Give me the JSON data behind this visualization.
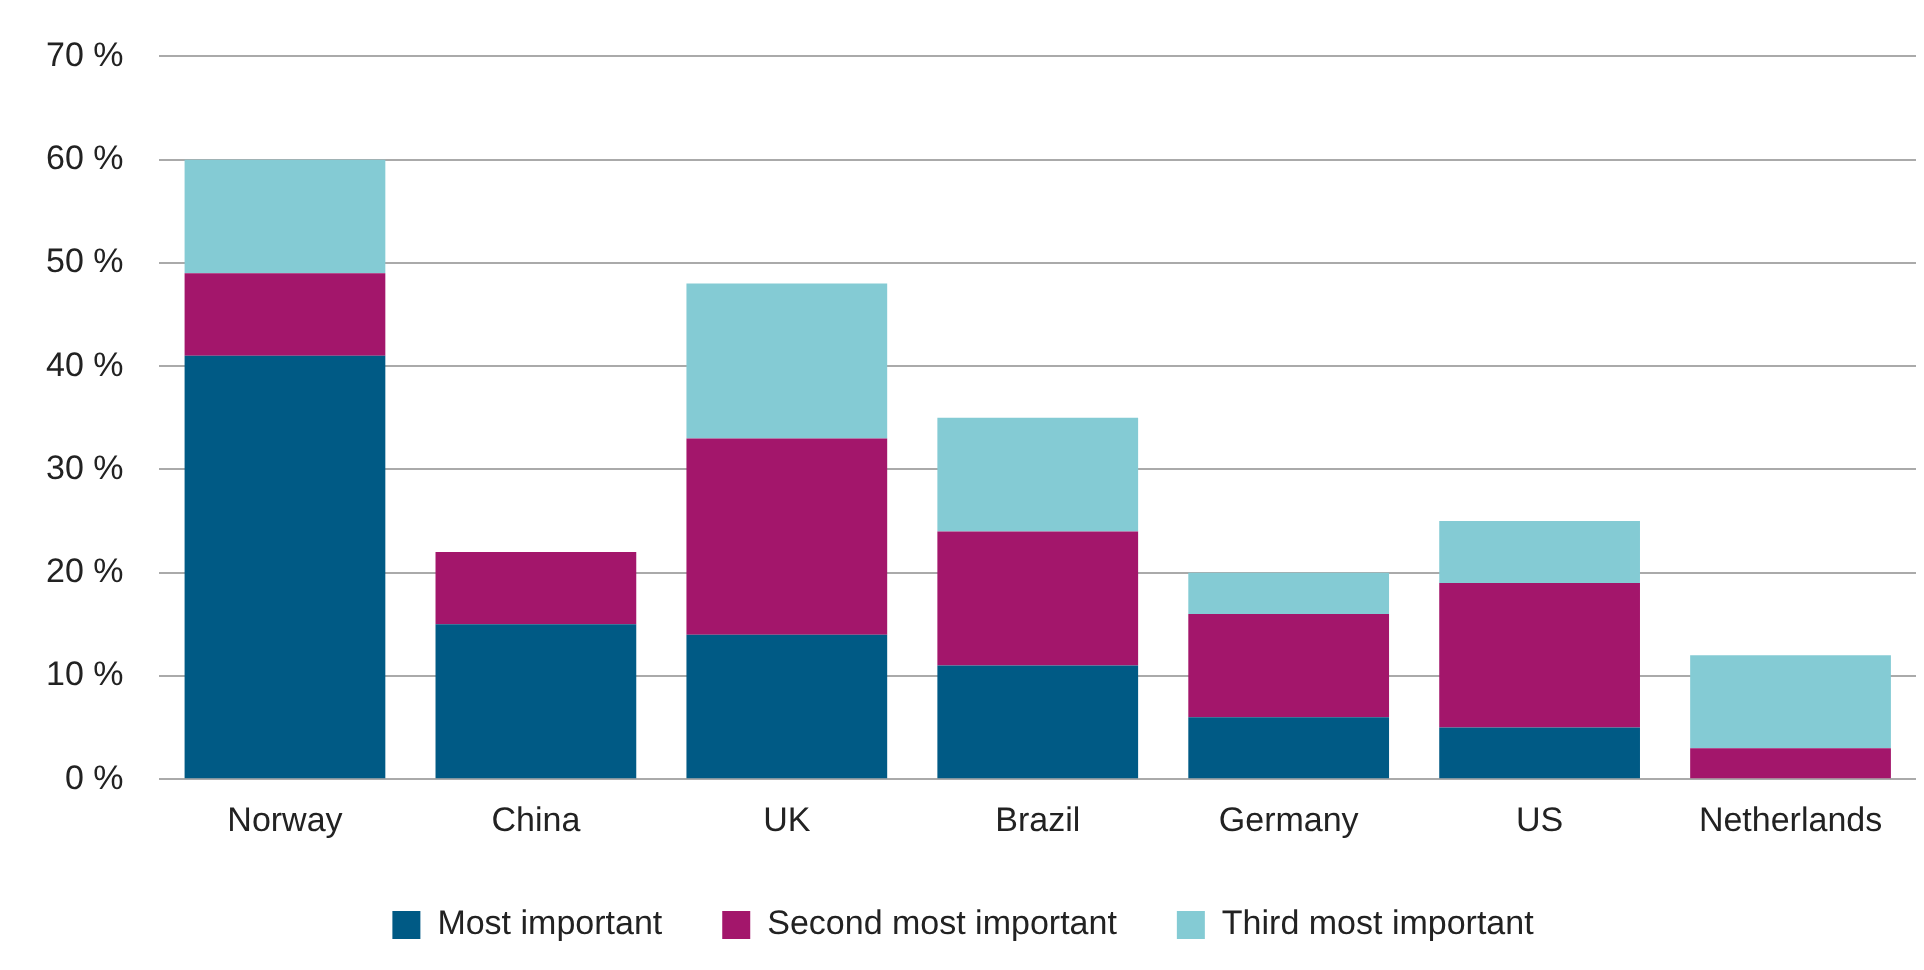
{
  "chart_data": {
    "type": "bar",
    "stacked": true,
    "categories": [
      "Norway",
      "China",
      "UK",
      "Brazil",
      "Germany",
      "US",
      "Netherlands"
    ],
    "series": [
      {
        "name": "Most important",
        "color": "#005a85",
        "values": [
          41,
          15,
          14,
          11,
          6,
          5,
          0
        ]
      },
      {
        "name": "Second most important",
        "color": "#a3166b",
        "values": [
          8,
          7,
          19,
          13,
          10,
          14,
          3
        ]
      },
      {
        "name": "Third most important",
        "color": "#84cbd4",
        "values": [
          11,
          0,
          15,
          11,
          4,
          6,
          9
        ]
      }
    ],
    "ylim": [
      0,
      70
    ],
    "yticks": [
      {
        "value": 0,
        "label": "0 %"
      },
      {
        "value": 10,
        "label": "10 %"
      },
      {
        "value": 20,
        "label": "20 %"
      },
      {
        "value": 30,
        "label": "30 %"
      },
      {
        "value": 40,
        "label": "40 %"
      },
      {
        "value": 50,
        "label": "50 %"
      },
      {
        "value": 60,
        "label": "60 %"
      },
      {
        "value": 70,
        "label": "70 %"
      }
    ],
    "grid": "y",
    "legend": "bottom"
  }
}
